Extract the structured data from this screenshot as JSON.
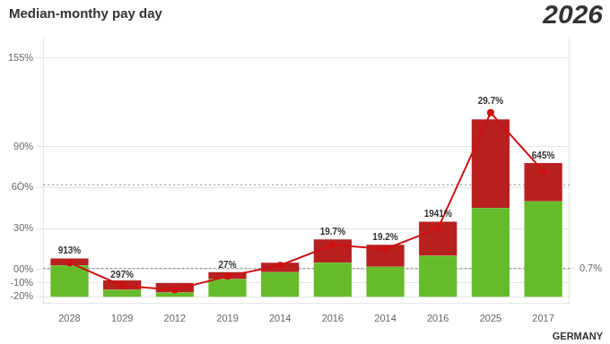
{
  "chart_data": {
    "type": "bar",
    "title": "Median-monthy pay day",
    "subtitle": "2026",
    "annotations": [
      "GERMANY"
    ],
    "categories": [
      "2028",
      "1029",
      "2012",
      "2019",
      "2014",
      "2016",
      "2014",
      "2016",
      "2025",
      "2017"
    ],
    "stacked": true,
    "bar_base": -20,
    "series": [
      {
        "type": "bar",
        "color": "#66bb2a",
        "values": [
          23,
          5,
          3,
          13,
          18,
          25,
          22,
          30,
          65,
          70
        ]
      },
      {
        "type": "bar",
        "color": "#b82020",
        "values": [
          5,
          7,
          7,
          5,
          7,
          17,
          16,
          25,
          65,
          28
        ]
      },
      {
        "type": "line",
        "color": "#cc1111",
        "marker": "circle",
        "values": [
          5,
          -12,
          -15,
          -5,
          3,
          18,
          15,
          30,
          115,
          72
        ]
      }
    ],
    "bar_labels": [
      "913%",
      "297%",
      null,
      "27%",
      null,
      "19.7%",
      "19.2%",
      "1941%",
      "29.7%",
      "645%"
    ],
    "reference_lines": [
      0.7,
      62
    ],
    "ylim": [
      -25,
      170
    ],
    "yticks": [
      {
        "value": -20,
        "label": "-20%"
      },
      {
        "value": -10,
        "label": "-10%"
      },
      {
        "value": 0,
        "label": "00%"
      },
      {
        "value": 0.7,
        "label": "0.7%"
      },
      {
        "value": 30,
        "label": "30%"
      },
      {
        "value": 60,
        "label": "6Ò%"
      },
      {
        "value": 90,
        "label": "90%"
      },
      {
        "value": 155,
        "label": "155%"
      }
    ],
    "grid": true
  }
}
